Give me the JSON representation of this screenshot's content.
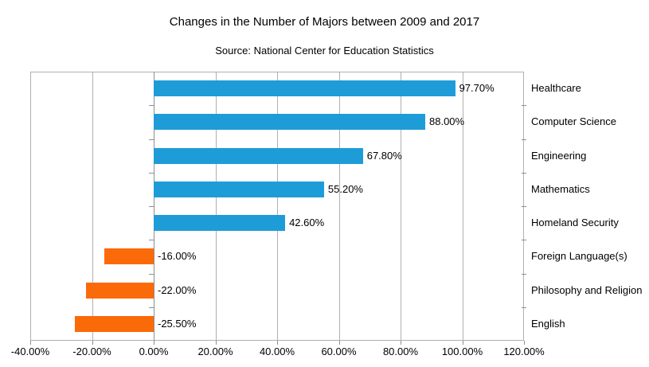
{
  "chart_data": {
    "type": "bar",
    "orientation": "horizontal",
    "title": "Changes in the Number of Majors between 2009 and 2017",
    "subtitle": "Source: National Center for Education Statistics",
    "categories": [
      "Healthcare",
      "Computer Science",
      "Engineering",
      "Mathematics",
      "Homeland Security",
      "Foreign Language(s)",
      "Philosophy and Religion",
      "English"
    ],
    "values": [
      97.7,
      88.0,
      67.8,
      55.2,
      42.6,
      -16.0,
      -22.0,
      -25.5
    ],
    "value_labels": [
      "97.70%",
      "88.00%",
      "67.80%",
      "55.20%",
      "42.60%",
      "-16.00%",
      "-22.00%",
      "-25.50%"
    ],
    "xlim": [
      -40,
      120
    ],
    "x_ticks": [
      -40,
      -20,
      0,
      20,
      40,
      60,
      80,
      100,
      120
    ],
    "x_tick_labels": [
      "-40.00%",
      "-20.00%",
      "0.00%",
      "20.00%",
      "40.00%",
      "60.00%",
      "80.00%",
      "100.00%",
      "120.00%"
    ],
    "grid": "vertical-gridlines-on",
    "legend": "none",
    "category_label_position": "right",
    "value_label_position": "outside-end-positive, right-of-zero-negative",
    "positive_color": "#1e9cd8",
    "negative_color": "#fb6a09",
    "gridline_color": "#b0b0b0",
    "axis_line_color": "#8f8f8f",
    "text_color": "#000000",
    "background_color": "#ffffff"
  }
}
